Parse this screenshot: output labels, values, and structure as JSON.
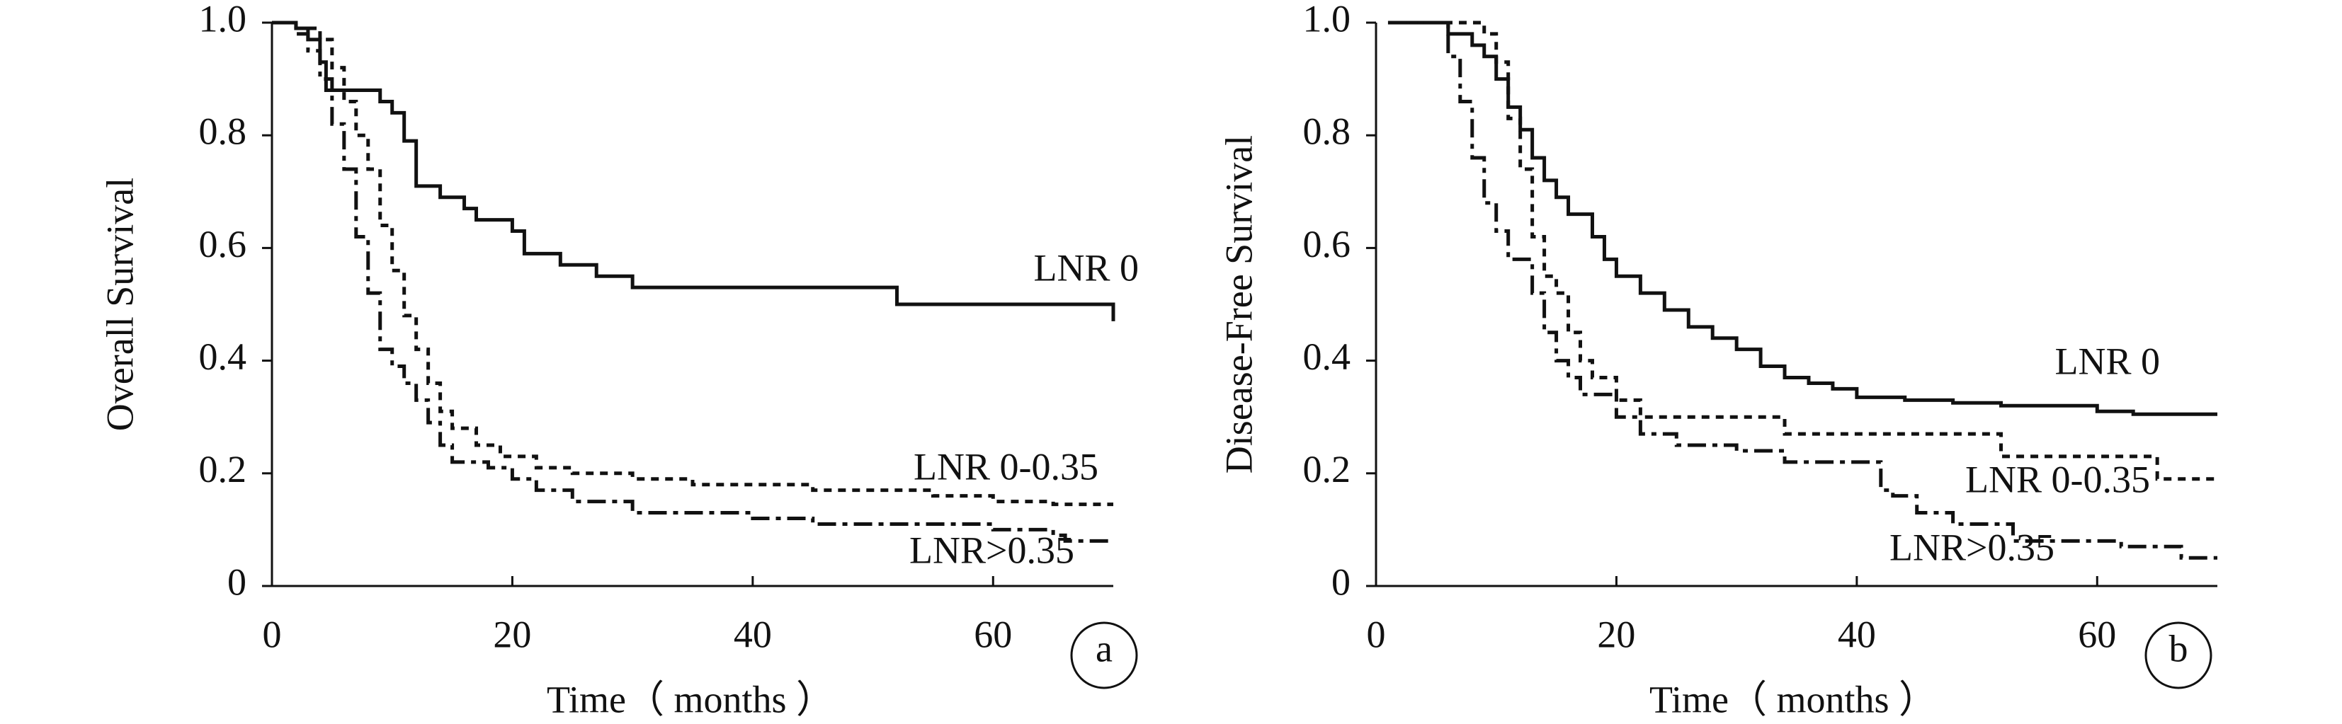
{
  "chart_data": [
    {
      "type": "line",
      "step": true,
      "panel_label": "a",
      "x_label": "Time（ months ）",
      "y_label": "Overall Survival",
      "xlim": [
        0,
        70
      ],
      "xticks": [
        0,
        20,
        40,
        60
      ],
      "ylim": [
        0,
        1
      ],
      "yticks": [
        0,
        0.2,
        0.4,
        0.6,
        0.8,
        {
          "value": 1,
          "label": "1.0"
        }
      ],
      "series": [
        {
          "name": "LNR 0",
          "color": "#111111",
          "style": "solid",
          "x": [
            0,
            2,
            3,
            4,
            4.5,
            8,
            9,
            10,
            11,
            12,
            14,
            16,
            17,
            20,
            21,
            24,
            27,
            30,
            52,
            69,
            70
          ],
          "values": [
            1.0,
            0.99,
            0.97,
            0.93,
            0.88,
            0.88,
            0.86,
            0.84,
            0.79,
            0.71,
            0.69,
            0.67,
            0.65,
            0.63,
            0.59,
            0.57,
            0.55,
            0.53,
            0.5,
            0.5,
            0.47
          ]
        },
        {
          "name": "LNR 0-0.35",
          "color": "#111111",
          "style": "dashed",
          "x": [
            0,
            2,
            4,
            5,
            6,
            7,
            8,
            9,
            10,
            11,
            12,
            13,
            14,
            15,
            17,
            19,
            22,
            25,
            30,
            35,
            45,
            55,
            60,
            65,
            70
          ],
          "values": [
            1.0,
            0.99,
            0.97,
            0.92,
            0.86,
            0.8,
            0.74,
            0.64,
            0.56,
            0.48,
            0.42,
            0.36,
            0.31,
            0.28,
            0.25,
            0.23,
            0.21,
            0.2,
            0.19,
            0.18,
            0.17,
            0.16,
            0.15,
            0.145,
            0.145
          ]
        },
        {
          "name": "LNR>0.35",
          "color": "#111111",
          "style": "dashdot",
          "x": [
            0,
            2,
            3,
            4,
            5,
            6,
            7,
            8,
            9,
            10,
            11,
            12,
            13,
            14,
            15,
            18,
            20,
            22,
            25,
            30,
            40,
            45,
            60,
            65,
            66,
            70
          ],
          "values": [
            1.0,
            0.98,
            0.95,
            0.9,
            0.82,
            0.74,
            0.62,
            0.52,
            0.42,
            0.39,
            0.36,
            0.33,
            0.29,
            0.25,
            0.22,
            0.21,
            0.19,
            0.17,
            0.15,
            0.13,
            0.12,
            0.11,
            0.1,
            0.09,
            0.08,
            0.08
          ]
        }
      ]
    },
    {
      "type": "line",
      "step": true,
      "panel_label": "b",
      "x_label": "Time（ months ）",
      "y_label": "Disease-Free Survival",
      "xlim": [
        0,
        70
      ],
      "xticks": [
        0,
        20,
        40,
        60
      ],
      "ylim": [
        0,
        1
      ],
      "yticks": [
        0,
        0.2,
        0.4,
        0.6,
        0.8,
        {
          "value": 1,
          "label": "1.0"
        }
      ],
      "series": [
        {
          "name": "LNR 0",
          "color": "#111111",
          "style": "solid",
          "x": [
            1,
            5,
            6,
            8,
            9,
            10,
            11,
            12,
            13,
            14,
            15,
            16,
            18,
            19,
            20,
            22,
            24,
            26,
            28,
            30,
            32,
            34,
            36,
            38,
            40,
            44,
            48,
            52,
            60,
            63,
            70
          ],
          "values": [
            1.0,
            1.0,
            0.98,
            0.96,
            0.94,
            0.9,
            0.85,
            0.81,
            0.76,
            0.72,
            0.69,
            0.66,
            0.62,
            0.58,
            0.55,
            0.52,
            0.49,
            0.46,
            0.44,
            0.42,
            0.39,
            0.37,
            0.36,
            0.35,
            0.335,
            0.33,
            0.325,
            0.32,
            0.31,
            0.305,
            0.305
          ]
        },
        {
          "name": "LNR 0-0.35",
          "color": "#111111",
          "style": "dashed",
          "x": [
            1,
            8,
            9,
            10,
            11,
            12,
            13,
            14,
            15,
            16,
            17,
            18,
            20,
            22,
            34,
            52,
            65,
            70
          ],
          "values": [
            1.0,
            1.0,
            0.98,
            0.93,
            0.83,
            0.74,
            0.62,
            0.55,
            0.52,
            0.45,
            0.4,
            0.37,
            0.33,
            0.3,
            0.27,
            0.23,
            0.19,
            0.185
          ]
        },
        {
          "name": "LNR>0.35",
          "color": "#111111",
          "style": "dashdot",
          "x": [
            1,
            5,
            6,
            7,
            8,
            9,
            10,
            11,
            13,
            14,
            15,
            16,
            17,
            20,
            22,
            25,
            30,
            34,
            42,
            43,
            45,
            48,
            53,
            62,
            67,
            70
          ],
          "values": [
            1.0,
            1.0,
            0.94,
            0.86,
            0.76,
            0.68,
            0.63,
            0.58,
            0.52,
            0.45,
            0.4,
            0.37,
            0.34,
            0.3,
            0.27,
            0.25,
            0.24,
            0.22,
            0.17,
            0.16,
            0.13,
            0.11,
            0.08,
            0.07,
            0.05,
            0.05
          ]
        }
      ]
    }
  ]
}
